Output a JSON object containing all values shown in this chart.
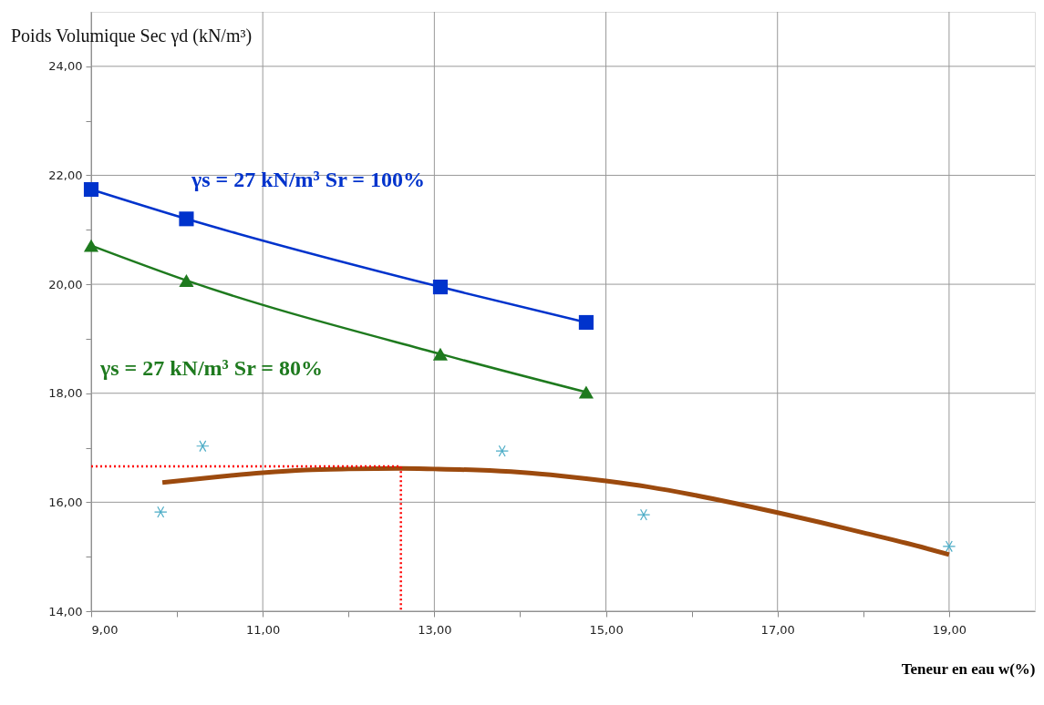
{
  "chart_data": {
    "type": "line",
    "ylabel": "Poids Volumique Sec γd (kN/m³)",
    "xlabel": "Teneur en eau w(%)",
    "xlim": [
      9,
      20
    ],
    "ylim": [
      14,
      25
    ],
    "xticks": [
      {
        "value": 9,
        "label": "9,00"
      },
      {
        "value": 10,
        "label": null
      },
      {
        "value": 11,
        "label": "11,00"
      },
      {
        "value": 12,
        "label": null
      },
      {
        "value": 13,
        "label": "13,00"
      },
      {
        "value": 14,
        "label": null
      },
      {
        "value": 15,
        "label": "15,00"
      },
      {
        "value": 16,
        "label": null
      },
      {
        "value": 17,
        "label": "17,00"
      },
      {
        "value": 18,
        "label": null
      },
      {
        "value": 19,
        "label": "19,00"
      }
    ],
    "yticks": [
      {
        "value": 14,
        "label": "14,00"
      },
      {
        "value": 15,
        "label": null
      },
      {
        "value": 16,
        "label": "16,00"
      },
      {
        "value": 17,
        "label": null
      },
      {
        "value": 18,
        "label": "18,00"
      },
      {
        "value": 19,
        "label": null
      },
      {
        "value": 20,
        "label": "20,00"
      },
      {
        "value": 21,
        "label": null
      },
      {
        "value": 22,
        "label": "22,00"
      },
      {
        "value": 23,
        "label": null
      },
      {
        "value": 24,
        "label": "24,00"
      }
    ],
    "grid": true,
    "series": [
      {
        "name": "γs = 27 kN/m³     Sr = 100%",
        "color": "#0033cc",
        "marker": "square",
        "x": [
          9.0,
          10.11,
          13.07,
          14.77
        ],
        "values": [
          21.74,
          21.2,
          19.95,
          19.3
        ]
      },
      {
        "name": "γs = 27 kN/m³  Sr = 80%",
        "color": "#1e7a1e",
        "marker": "triangle",
        "x": [
          9.0,
          10.11,
          13.07,
          14.77
        ],
        "values": [
          20.71,
          20.07,
          18.72,
          18.02
        ]
      },
      {
        "type": "scatter",
        "color": "#4bacc6",
        "marker": "cross",
        "x": [
          9.81,
          10.3,
          13.79,
          15.44,
          19.0
        ],
        "values": [
          15.82,
          17.03,
          16.94,
          15.77,
          15.19
        ]
      },
      {
        "color": "#9c4a0e",
        "marker": "none",
        "x": [
          9.83,
          10.5,
          11.0,
          11.5,
          12.0,
          12.6,
          13.0,
          13.5,
          14.0,
          14.5,
          15.0,
          15.5,
          16.0,
          16.5,
          17.0,
          17.5,
          18.0,
          18.5,
          19.0
        ],
        "values": [
          16.36,
          16.47,
          16.54,
          16.59,
          16.61,
          16.62,
          16.61,
          16.59,
          16.55,
          16.48,
          16.39,
          16.28,
          16.14,
          15.98,
          15.81,
          15.63,
          15.44,
          15.25,
          15.04
        ]
      },
      {
        "color": "#ff0000",
        "marker": "none",
        "line_style": "dotted",
        "x": [
          9.0,
          12.61,
          12.61
        ],
        "values": [
          16.66,
          16.66,
          14.0
        ]
      }
    ]
  }
}
